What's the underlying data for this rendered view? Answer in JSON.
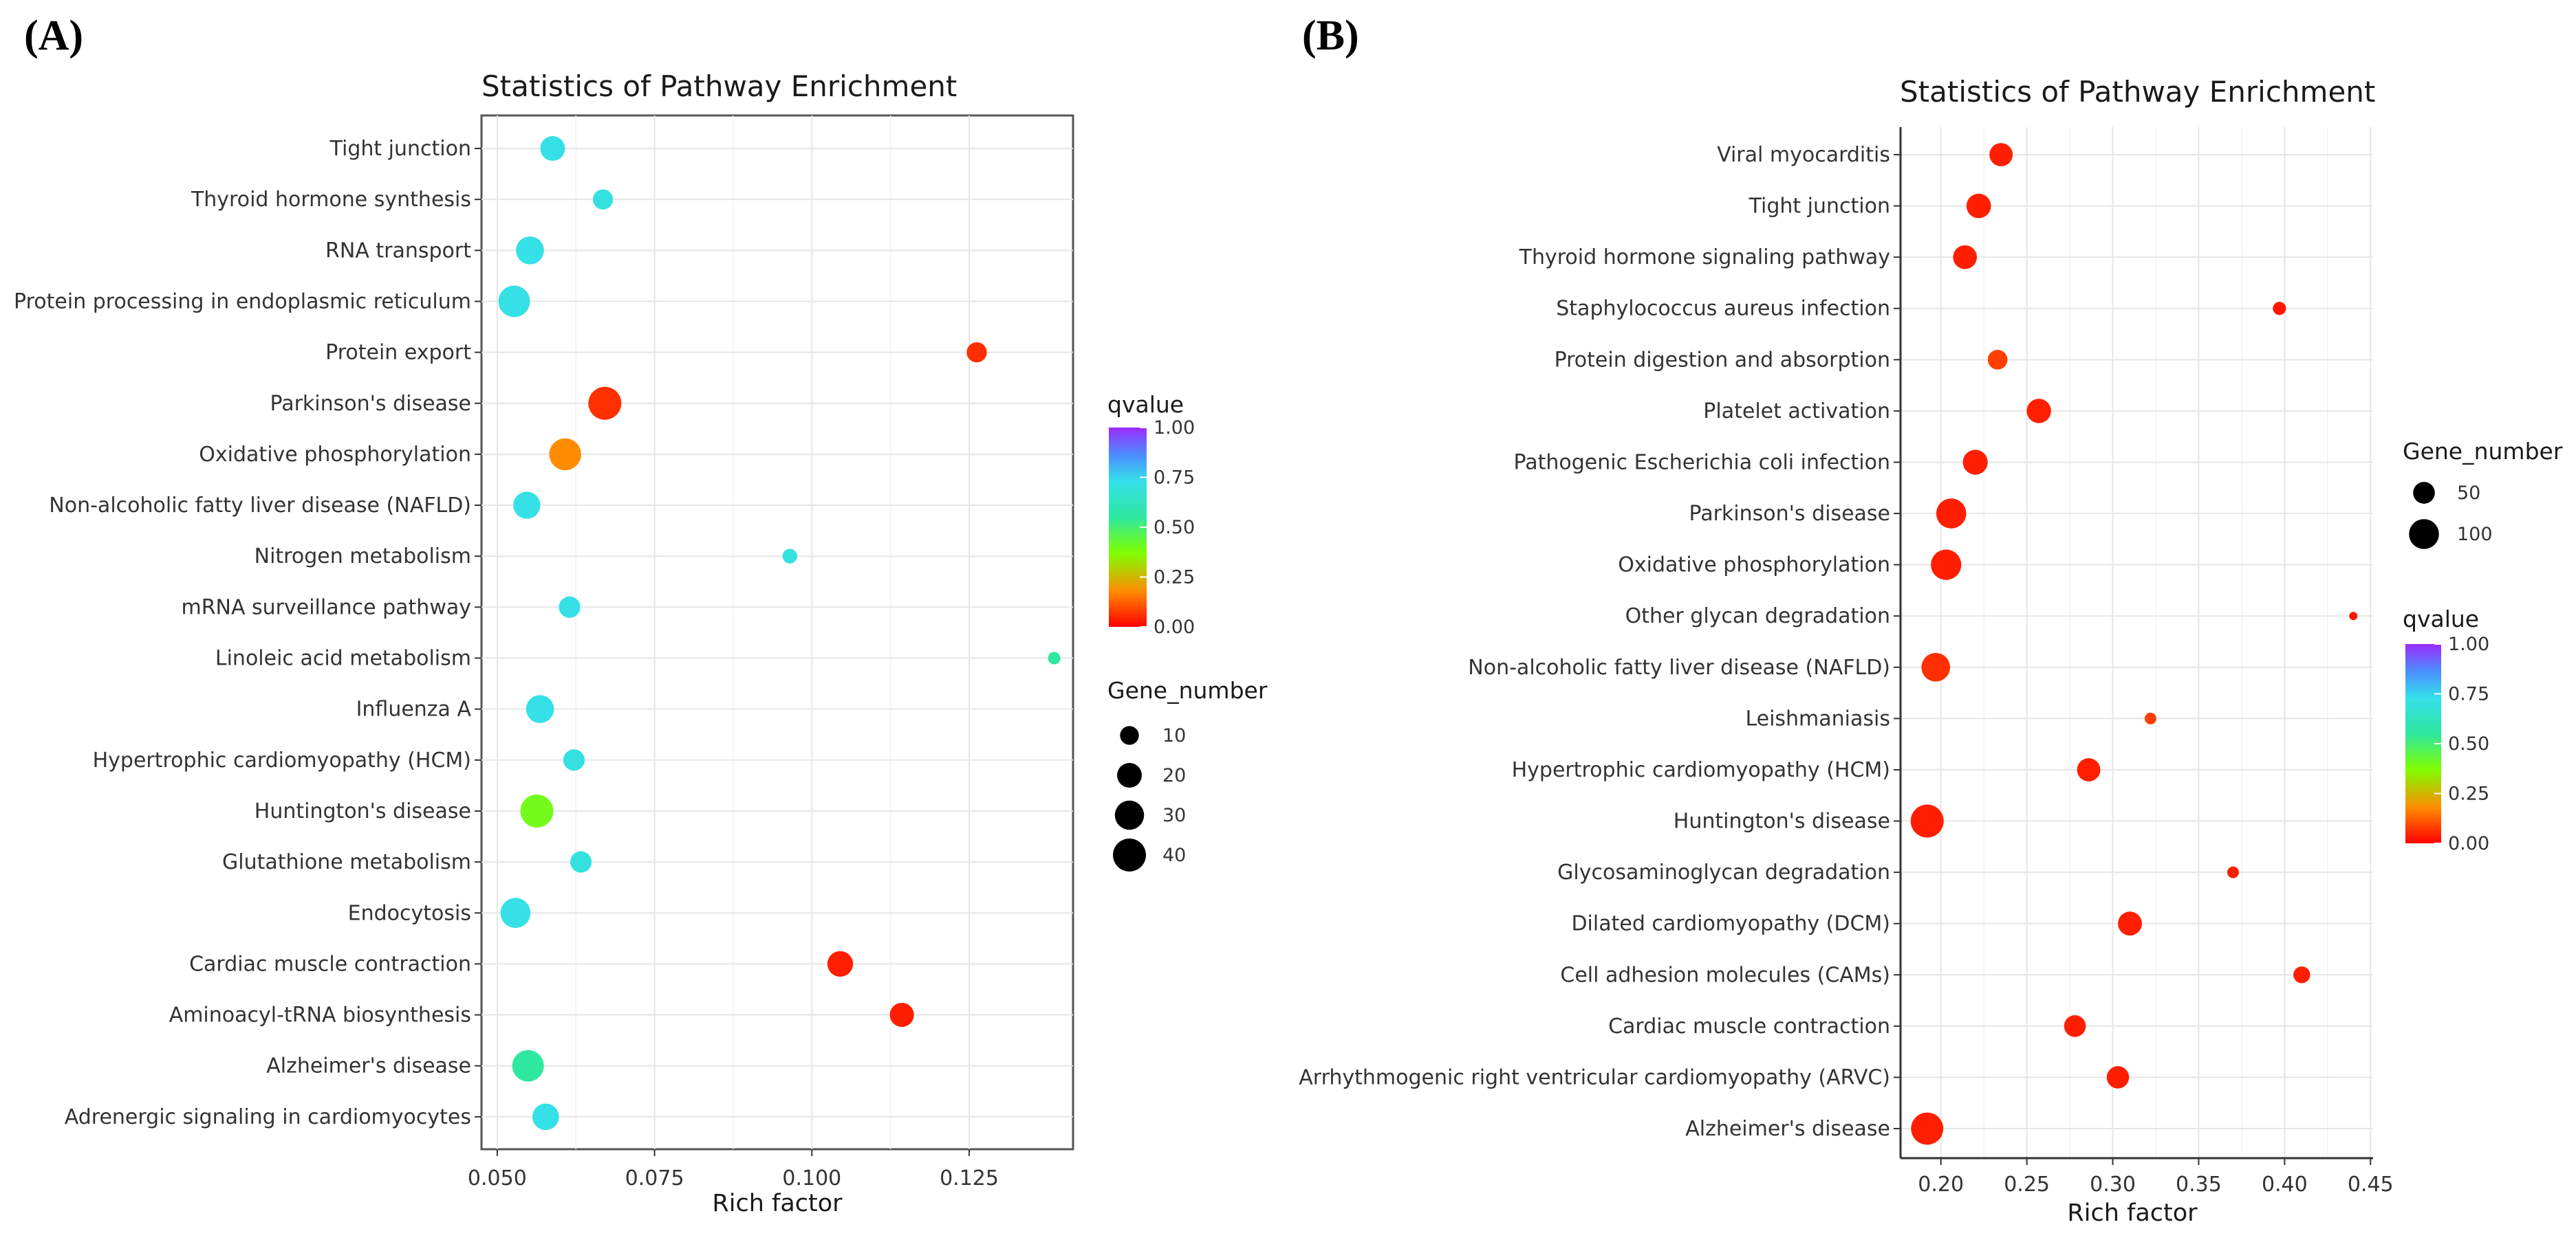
{
  "figure": {
    "label_a": "(A)",
    "label_b": "(B)"
  },
  "colors": {
    "grid": "#e6e6e6",
    "panel_border": "#555555",
    "axis_text": "#333333"
  },
  "chart_data": [
    {
      "type": "scatter",
      "id": "A",
      "title": "Statistics of Pathway Enrichment",
      "xlabel": "Rich factor",
      "ylabel": "",
      "xlim": [
        0.0475,
        0.1415
      ],
      "xticks": [
        0.05,
        0.075,
        0.1,
        0.125
      ],
      "xtick_labels": [
        "0.050",
        "0.075",
        "0.100",
        "0.125"
      ],
      "grid": true,
      "legend_order": "color-first",
      "color_legend": {
        "title": "qvalue",
        "min": 0,
        "max": 1,
        "ticks": [
          "1.00",
          "0.75",
          "0.50",
          "0.25",
          "0.00"
        ]
      },
      "size_legend": {
        "title": "Gene_number",
        "values": [
          10,
          20,
          30,
          40
        ],
        "labels": [
          "10",
          "20",
          "30",
          "40"
        ]
      },
      "points": [
        {
          "pathway": "Tight junction",
          "x": 0.0588,
          "q": 0.72,
          "genes": 20
        },
        {
          "pathway": "Thyroid hormone synthesis",
          "x": 0.0668,
          "q": 0.7,
          "genes": 12
        },
        {
          "pathway": "RNA transport",
          "x": 0.0552,
          "q": 0.72,
          "genes": 27
        },
        {
          "pathway": "Protein processing in endoplasmic reticulum",
          "x": 0.0527,
          "q": 0.72,
          "genes": 36
        },
        {
          "pathway": "Protein export",
          "x": 0.1262,
          "q": 0.06,
          "genes": 12
        },
        {
          "pathway": "Parkinson's disease",
          "x": 0.0671,
          "q": 0.06,
          "genes": 40
        },
        {
          "pathway": "Oxidative phosphorylation",
          "x": 0.0608,
          "q": 0.18,
          "genes": 37
        },
        {
          "pathway": "Non-alcoholic fatty liver disease (NAFLD)",
          "x": 0.0547,
          "q": 0.72,
          "genes": 25
        },
        {
          "pathway": "Nitrogen metabolism",
          "x": 0.0965,
          "q": 0.7,
          "genes": 5
        },
        {
          "pathway": "mRNA surveillance pathway",
          "x": 0.0615,
          "q": 0.72,
          "genes": 14
        },
        {
          "pathway": "Linoleic acid metabolism",
          "x": 0.1385,
          "q": 0.55,
          "genes": 3
        },
        {
          "pathway": "Influenza A",
          "x": 0.0568,
          "q": 0.72,
          "genes": 27
        },
        {
          "pathway": "Hypertrophic cardiomyopathy (HCM)",
          "x": 0.0622,
          "q": 0.7,
          "genes": 14
        },
        {
          "pathway": "Huntington's disease",
          "x": 0.0563,
          "q": 0.4,
          "genes": 40
        },
        {
          "pathway": "Glutathione metabolism",
          "x": 0.0633,
          "q": 0.7,
          "genes": 14
        },
        {
          "pathway": "Endocytosis",
          "x": 0.0529,
          "q": 0.72,
          "genes": 32
        },
        {
          "pathway": "Cardiac muscle contraction",
          "x": 0.1045,
          "q": 0.04,
          "genes": 22
        },
        {
          "pathway": "Aminoacyl-tRNA biosynthesis",
          "x": 0.1143,
          "q": 0.04,
          "genes": 19
        },
        {
          "pathway": "Alzheimer's disease",
          "x": 0.0549,
          "q": 0.55,
          "genes": 36
        },
        {
          "pathway": "Adrenergic signaling in cardiomyocytes",
          "x": 0.0577,
          "q": 0.72,
          "genes": 24
        }
      ]
    },
    {
      "type": "scatter",
      "id": "B",
      "title": "Statistics of Pathway Enrichment",
      "xlabel": "Rich factor",
      "ylabel": "",
      "xlim": [
        0.1765,
        0.4515
      ],
      "xticks": [
        0.2,
        0.25,
        0.3,
        0.35,
        0.4,
        0.45
      ],
      "xtick_labels": [
        "0.20",
        "0.25",
        "0.30",
        "0.35",
        "0.40",
        "0.45"
      ],
      "grid": true,
      "legend_order": "size-first",
      "color_legend": {
        "title": "qvalue",
        "min": 0,
        "max": 1,
        "ticks": [
          "1.00",
          "0.75",
          "0.50",
          "0.25",
          "0.00"
        ]
      },
      "size_legend": {
        "title": "Gene_number",
        "values": [
          50,
          100
        ],
        "labels": [
          "50",
          "100"
        ]
      },
      "points": [
        {
          "pathway": "Viral myocarditis",
          "x": 0.235,
          "q": 0.04,
          "genes": 58
        },
        {
          "pathway": "Tight junction",
          "x": 0.222,
          "q": 0.04,
          "genes": 65
        },
        {
          "pathway": "Thyroid hormone signaling pathway",
          "x": 0.214,
          "q": 0.04,
          "genes": 61
        },
        {
          "pathway": "Staphylococcus aureus infection",
          "x": 0.397,
          "q": 0.03,
          "genes": 16
        },
        {
          "pathway": "Protein digestion and absorption",
          "x": 0.233,
          "q": 0.08,
          "genes": 40
        },
        {
          "pathway": "Platelet activation",
          "x": 0.257,
          "q": 0.04,
          "genes": 64
        },
        {
          "pathway": "Pathogenic Escherichia coli infection",
          "x": 0.22,
          "q": 0.04,
          "genes": 67
        },
        {
          "pathway": "Parkinson's disease",
          "x": 0.206,
          "q": 0.04,
          "genes": 100
        },
        {
          "pathway": "Oxidative phosphorylation",
          "x": 0.203,
          "q": 0.04,
          "genes": 103
        },
        {
          "pathway": "Other glycan degradation",
          "x": 0.44,
          "q": 0.03,
          "genes": 5
        },
        {
          "pathway": "Non-alcoholic fatty liver disease (NAFLD)",
          "x": 0.197,
          "q": 0.06,
          "genes": 91
        },
        {
          "pathway": "Leishmaniasis",
          "x": 0.322,
          "q": 0.08,
          "genes": 12
        },
        {
          "pathway": "Hypertrophic cardiomyopathy (HCM)",
          "x": 0.286,
          "q": 0.04,
          "genes": 58
        },
        {
          "pathway": "Huntington's disease",
          "x": 0.192,
          "q": 0.04,
          "genes": 123
        },
        {
          "pathway": "Glycosaminoglycan degradation",
          "x": 0.37,
          "q": 0.04,
          "genes": 12
        },
        {
          "pathway": "Dilated cardiomyopathy (DCM)",
          "x": 0.31,
          "q": 0.04,
          "genes": 62
        },
        {
          "pathway": "Cell adhesion molecules (CAMs)",
          "x": 0.41,
          "q": 0.04,
          "genes": 28
        },
        {
          "pathway": "Cardiac muscle contraction",
          "x": 0.278,
          "q": 0.04,
          "genes": 50
        },
        {
          "pathway": "Arrhythmogenic right ventricular cardiomyopathy (ARVC)",
          "x": 0.303,
          "q": 0.04,
          "genes": 53
        },
        {
          "pathway": "Alzheimer's disease",
          "x": 0.192,
          "q": 0.04,
          "genes": 117
        }
      ]
    }
  ]
}
